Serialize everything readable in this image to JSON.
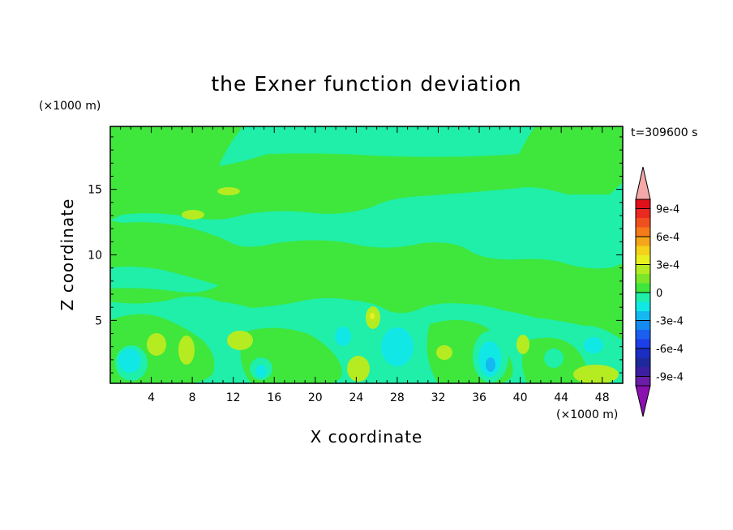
{
  "chart_data": {
    "type": "heatmap",
    "title": "the Exner function deviation",
    "xlabel": "X coordinate",
    "ylabel": "Z coordinate",
    "x_unit": "(×1000 m)",
    "y_unit": "(×1000 m)",
    "time_label": "t=309600 s",
    "xlim": [
      0,
      50
    ],
    "ylim": [
      0.2,
      19.8
    ],
    "x_ticks": [
      "4",
      "8",
      "12",
      "16",
      "20",
      "24",
      "28",
      "32",
      "36",
      "40",
      "44",
      "48"
    ],
    "y_ticks": [
      "5",
      "10",
      "15"
    ],
    "colorbar": {
      "labels": [
        "9e-4",
        "6e-4",
        "3e-4",
        "0",
        "-3e-4",
        "-6e-4",
        "-9e-4"
      ],
      "levels": [
        -0.001,
        -0.0009,
        -0.0008,
        -0.0007,
        -0.0006,
        -0.0005,
        -0.0004,
        -0.0003,
        -0.0002,
        -0.0001,
        0,
        0.0001,
        0.0002,
        0.0003,
        0.0004,
        0.0005,
        0.0006,
        0.0007,
        0.0008,
        0.0009,
        0.001
      ],
      "colors": [
        "#6a1ea8",
        "#3b1fa0",
        "#1e2a9c",
        "#1b2ec4",
        "#1e3fe8",
        "#1a5ff0",
        "#1489f0",
        "#15b8f0",
        "#11e8e6",
        "#1fefa8",
        "#3fe63c",
        "#7de628",
        "#b4ec21",
        "#e8f020",
        "#f5d21a",
        "#f5a51a",
        "#f57a1a",
        "#f05020",
        "#ea2a20",
        "#e0101a"
      ],
      "over_color": "#f4a8a8",
      "under_color": "#8a10b0"
    }
  },
  "colors": {
    "near_zero_negative": "#1fefa8",
    "near_zero_positive": "#3fe63c",
    "small_positive": "#7de628",
    "moderate_positive": "#b4ec21",
    "minus_1e4": "#11e8e6",
    "minus_2e4": "#15b8f0"
  }
}
